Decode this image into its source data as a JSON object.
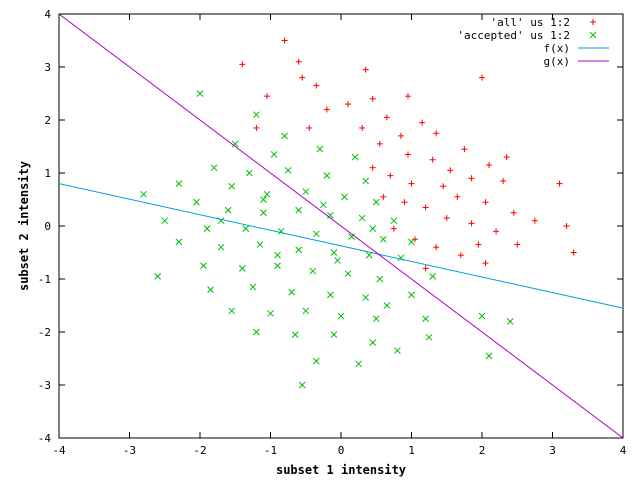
{
  "chart_data": {
    "type": "scatter",
    "xlabel": "subset 1 intensity",
    "ylabel": "subset 2 intensity",
    "xlim": [
      -4,
      4
    ],
    "ylim": [
      -4,
      4
    ],
    "x_ticks": [
      "-4",
      "-3",
      "-2",
      "-1",
      "0",
      "1",
      "2",
      "3",
      "4"
    ],
    "y_ticks": [
      "-4",
      "-3",
      "-2",
      "-1",
      "0",
      "1",
      "2",
      "3",
      "4"
    ],
    "grid": false,
    "legend_position": "top-right",
    "series": [
      {
        "name": "'all' us 1:2",
        "marker": "plus",
        "color": "#ff0000",
        "points": [
          [
            -0.8,
            3.5
          ],
          [
            -1.4,
            3.05
          ],
          [
            -0.6,
            3.1
          ],
          [
            0.35,
            2.95
          ],
          [
            -0.55,
            2.8
          ],
          [
            2.0,
            2.8
          ],
          [
            0.95,
            2.45
          ],
          [
            -1.05,
            2.45
          ],
          [
            -0.35,
            2.65
          ],
          [
            0.45,
            2.4
          ],
          [
            -0.2,
            2.2
          ],
          [
            0.1,
            2.3
          ],
          [
            0.65,
            2.05
          ],
          [
            1.15,
            1.95
          ],
          [
            -1.2,
            1.85
          ],
          [
            -0.45,
            1.85
          ],
          [
            0.3,
            1.85
          ],
          [
            0.85,
            1.7
          ],
          [
            1.35,
            1.75
          ],
          [
            2.35,
            1.3
          ],
          [
            1.75,
            1.45
          ],
          [
            2.1,
            1.15
          ],
          [
            0.55,
            1.55
          ],
          [
            0.95,
            1.35
          ],
          [
            1.3,
            1.25
          ],
          [
            1.55,
            1.05
          ],
          [
            1.85,
            0.9
          ],
          [
            2.3,
            0.85
          ],
          [
            3.1,
            0.8
          ],
          [
            0.45,
            1.1
          ],
          [
            0.7,
            0.95
          ],
          [
            1.0,
            0.8
          ],
          [
            1.45,
            0.75
          ],
          [
            1.65,
            0.55
          ],
          [
            2.05,
            0.45
          ],
          [
            2.45,
            0.25
          ],
          [
            3.2,
            0.0
          ],
          [
            0.6,
            0.55
          ],
          [
            0.9,
            0.45
          ],
          [
            1.2,
            0.35
          ],
          [
            1.5,
            0.15
          ],
          [
            1.85,
            0.05
          ],
          [
            2.2,
            -0.1
          ],
          [
            2.5,
            -0.35
          ],
          [
            3.3,
            -0.5
          ],
          [
            1.05,
            -0.25
          ],
          [
            1.35,
            -0.4
          ],
          [
            1.7,
            -0.55
          ],
          [
            2.05,
            -0.7
          ],
          [
            1.2,
            -0.8
          ],
          [
            0.75,
            -0.05
          ],
          [
            1.95,
            -0.35
          ],
          [
            2.75,
            0.1
          ]
        ]
      },
      {
        "name": "'accepted' us 1:2",
        "marker": "cross",
        "color": "#00c000",
        "points": [
          [
            -2.0,
            2.5
          ],
          [
            -1.2,
            2.1
          ],
          [
            -0.8,
            1.7
          ],
          [
            -1.5,
            1.55
          ],
          [
            -0.95,
            1.35
          ],
          [
            -0.3,
            1.45
          ],
          [
            0.2,
            1.3
          ],
          [
            -1.8,
            1.1
          ],
          [
            -1.3,
            1.0
          ],
          [
            -0.75,
            1.05
          ],
          [
            -0.2,
            0.95
          ],
          [
            0.35,
            0.85
          ],
          [
            -2.3,
            0.8
          ],
          [
            -1.55,
            0.75
          ],
          [
            -1.05,
            0.6
          ],
          [
            -0.5,
            0.65
          ],
          [
            0.05,
            0.55
          ],
          [
            0.5,
            0.45
          ],
          [
            -2.8,
            0.6
          ],
          [
            -2.05,
            0.45
          ],
          [
            -1.6,
            0.3
          ],
          [
            -1.1,
            0.25
          ],
          [
            -0.6,
            0.3
          ],
          [
            -0.15,
            0.2
          ],
          [
            0.3,
            0.15
          ],
          [
            0.75,
            0.1
          ],
          [
            -2.5,
            0.1
          ],
          [
            -1.9,
            -0.05
          ],
          [
            -1.35,
            -0.05
          ],
          [
            -0.85,
            -0.1
          ],
          [
            -0.35,
            -0.15
          ],
          [
            0.15,
            -0.2
          ],
          [
            0.6,
            -0.25
          ],
          [
            1.0,
            -0.3
          ],
          [
            -2.3,
            -0.3
          ],
          [
            -1.7,
            -0.4
          ],
          [
            -1.15,
            -0.35
          ],
          [
            -0.6,
            -0.45
          ],
          [
            -0.1,
            -0.5
          ],
          [
            0.4,
            -0.55
          ],
          [
            0.85,
            -0.6
          ],
          [
            -2.6,
            -0.95
          ],
          [
            -1.95,
            -0.75
          ],
          [
            -1.4,
            -0.8
          ],
          [
            -0.9,
            -0.75
          ],
          [
            -0.4,
            -0.85
          ],
          [
            0.1,
            -0.9
          ],
          [
            0.55,
            -1.0
          ],
          [
            1.3,
            -0.95
          ],
          [
            -1.85,
            -1.2
          ],
          [
            -1.25,
            -1.15
          ],
          [
            -0.7,
            -1.25
          ],
          [
            -0.15,
            -1.3
          ],
          [
            0.35,
            -1.35
          ],
          [
            1.0,
            -1.3
          ],
          [
            -1.55,
            -1.6
          ],
          [
            -1.0,
            -1.65
          ],
          [
            -0.5,
            -1.6
          ],
          [
            0.0,
            -1.7
          ],
          [
            0.5,
            -1.75
          ],
          [
            1.2,
            -1.75
          ],
          [
            -1.2,
            -2.0
          ],
          [
            -0.65,
            -2.05
          ],
          [
            -0.1,
            -2.05
          ],
          [
            0.45,
            -2.2
          ],
          [
            1.25,
            -2.1
          ],
          [
            2.0,
            -1.7
          ],
          [
            2.4,
            -1.8
          ],
          [
            -0.35,
            -2.55
          ],
          [
            0.25,
            -2.6
          ],
          [
            0.8,
            -2.35
          ],
          [
            2.1,
            -2.45
          ],
          [
            -0.55,
            -3.0
          ],
          [
            -1.1,
            0.5
          ],
          [
            -0.25,
            0.4
          ],
          [
            0.45,
            -0.05
          ],
          [
            -0.05,
            -0.65
          ],
          [
            -1.7,
            0.1
          ],
          [
            -0.9,
            -0.55
          ],
          [
            0.65,
            -1.5
          ]
        ]
      }
    ],
    "lines": [
      {
        "name": "f(x)",
        "color": "#009ee0",
        "x": [
          -4,
          4
        ],
        "y": [
          0.8,
          -1.55
        ]
      },
      {
        "name": "g(x)",
        "color": "#b000d0",
        "x": [
          -4,
          4
        ],
        "y": [
          4.0,
          -4.0
        ]
      }
    ]
  }
}
